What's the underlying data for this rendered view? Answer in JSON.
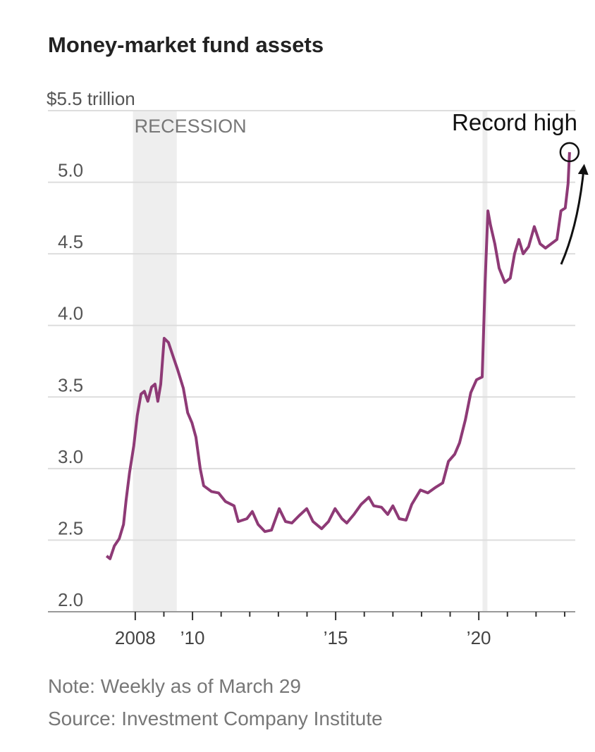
{
  "chart_data": {
    "type": "line",
    "title": "Money-market fund assets",
    "notes": [
      "Note: Weekly as of March 29",
      "Source: Investment Company Institute"
    ],
    "annotation": "Record high",
    "shaded_regions": [
      {
        "label": "RECESSION",
        "start": 2007.92,
        "end": 2009.45
      },
      {
        "start": 2020.13,
        "end": 2020.3
      }
    ],
    "color": "#8e3a76",
    "grid": true,
    "xlim": [
      2004.95,
      2023.37
    ],
    "xticks": [
      {
        "value": 2008,
        "label": "2008"
      },
      {
        "value": 2010,
        "label": "’10"
      },
      {
        "value": 2015,
        "label": "’15"
      },
      {
        "value": 2020,
        "label": "’20"
      }
    ],
    "xminor_ticks": [
      2009,
      2011,
      2012,
      2013,
      2014,
      2016,
      2017,
      2018,
      2019,
      2021,
      2022,
      2023
    ],
    "ylim": [
      2,
      5.5
    ],
    "yticks": [
      {
        "value": 2,
        "label": "2.0"
      },
      2.5,
      {
        "value": 3,
        "label": "3.0"
      },
      3.5,
      {
        "value": 4,
        "label": "4.0"
      },
      4.5,
      {
        "value": 5,
        "label": "5.0"
      },
      {
        "value": 5.5,
        "label": "$5.5 trillion"
      }
    ],
    "x": [
      2007.0,
      2007.12,
      2007.27,
      2007.44,
      2007.59,
      2007.68,
      2007.8,
      2007.95,
      2008.07,
      2008.2,
      2008.32,
      2008.44,
      2008.57,
      2008.69,
      2008.79,
      2008.89,
      2009.01,
      2009.16,
      2009.31,
      2009.48,
      2009.68,
      2009.83,
      2009.98,
      2010.12,
      2010.27,
      2010.39,
      2010.66,
      2010.91,
      2011.15,
      2011.45,
      2011.6,
      2011.9,
      2012.09,
      2012.29,
      2012.53,
      2012.76,
      2013.03,
      2013.25,
      2013.47,
      2013.72,
      2013.99,
      2014.21,
      2014.51,
      2014.75,
      2014.98,
      2015.22,
      2015.39,
      2015.64,
      2015.89,
      2016.16,
      2016.33,
      2016.6,
      2016.82,
      2017.0,
      2017.22,
      2017.46,
      2017.66,
      2017.96,
      2018.22,
      2018.5,
      2018.74,
      2018.94,
      2019.16,
      2019.33,
      2019.53,
      2019.72,
      2019.92,
      2020.12,
      2020.22,
      2020.32,
      2020.41,
      2020.56,
      2020.71,
      2020.91,
      2021.1,
      2021.25,
      2021.4,
      2021.55,
      2021.74,
      2021.94,
      2022.14,
      2022.33,
      2022.53,
      2022.73,
      2022.87,
      2023.02,
      2023.12,
      2023.17
    ],
    "values": [
      2.39,
      2.37,
      2.46,
      2.51,
      2.61,
      2.78,
      2.97,
      3.16,
      3.37,
      3.52,
      3.54,
      3.47,
      3.57,
      3.59,
      3.47,
      3.59,
      3.91,
      3.88,
      3.79,
      3.69,
      3.56,
      3.39,
      3.32,
      3.22,
      3.0,
      2.88,
      2.84,
      2.83,
      2.77,
      2.74,
      2.63,
      2.65,
      2.7,
      2.61,
      2.56,
      2.57,
      2.72,
      2.63,
      2.62,
      2.67,
      2.72,
      2.63,
      2.58,
      2.63,
      2.72,
      2.65,
      2.62,
      2.68,
      2.75,
      2.8,
      2.74,
      2.73,
      2.68,
      2.74,
      2.65,
      2.64,
      2.75,
      2.85,
      2.83,
      2.87,
      2.9,
      3.05,
      3.1,
      3.18,
      3.34,
      3.53,
      3.62,
      3.64,
      4.3,
      4.8,
      4.7,
      4.57,
      4.4,
      4.3,
      4.33,
      4.5,
      4.6,
      4.5,
      4.55,
      4.69,
      4.57,
      4.54,
      4.57,
      4.6,
      4.8,
      4.82,
      4.99,
      5.21
    ]
  }
}
